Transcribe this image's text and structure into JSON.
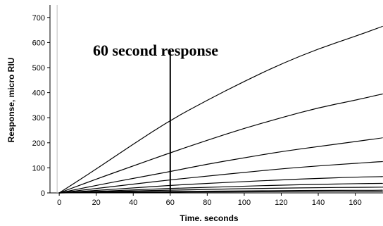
{
  "chart_data": {
    "type": "line",
    "xlabel": "Time. seconds",
    "ylabel": "Response, micro RIU",
    "xlim": [
      -5,
      175
    ],
    "ylim": [
      0,
      750
    ],
    "x_ticks": [
      0,
      20,
      40,
      60,
      80,
      100,
      120,
      140,
      160
    ],
    "y_ticks": [
      0,
      100,
      200,
      300,
      400,
      500,
      600,
      700
    ],
    "grid": false,
    "annotation": {
      "text": "60 second response",
      "x": 60,
      "line_from": 0,
      "line_to": 570
    },
    "x": [
      0,
      20,
      40,
      60,
      80,
      100,
      120,
      140,
      160,
      175
    ],
    "series": [
      {
        "values": [
          0,
          95,
          195,
          290,
          370,
          445,
          515,
          575,
          625,
          665
        ]
      },
      {
        "values": [
          0,
          55,
          108,
          160,
          210,
          258,
          300,
          340,
          370,
          395
        ]
      },
      {
        "values": [
          0,
          30,
          58,
          85,
          115,
          140,
          165,
          185,
          205,
          220
        ]
      },
      {
        "values": [
          0,
          18,
          35,
          52,
          67,
          82,
          96,
          108,
          118,
          125
        ]
      },
      {
        "values": [
          0,
          10,
          20,
          30,
          38,
          45,
          52,
          58,
          63,
          65
        ]
      },
      {
        "values": [
          0,
          6,
          12,
          18,
          22,
          27,
          31,
          34,
          37,
          38
        ]
      },
      {
        "values": [
          0,
          4,
          8,
          11,
          14,
          17,
          19,
          21,
          22,
          23
        ]
      },
      {
        "values": [
          0,
          2,
          4,
          6,
          7,
          8,
          9,
          10,
          10,
          11
        ]
      },
      {
        "values": [
          0,
          1,
          2,
          3,
          4,
          4,
          5,
          5,
          5,
          6
        ]
      }
    ]
  }
}
